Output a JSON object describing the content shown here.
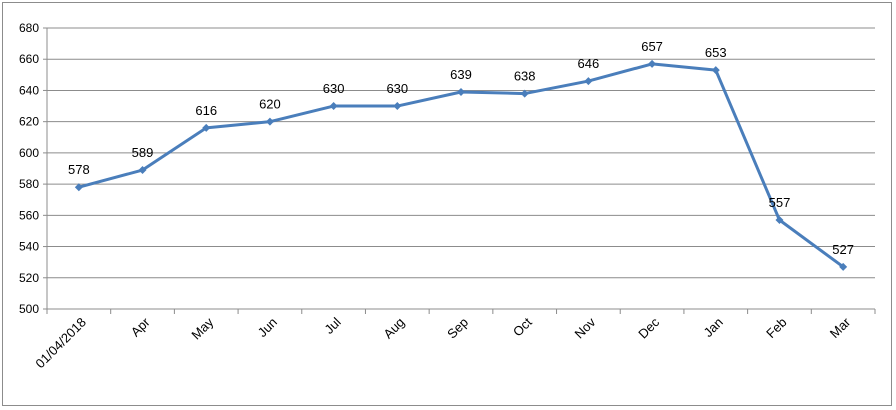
{
  "chart_data": {
    "type": "line",
    "title": "",
    "xlabel": "",
    "ylabel": "",
    "categories": [
      "01/04/2018",
      "Apr",
      "May",
      "Jun",
      "Jul",
      "Aug",
      "Sep",
      "Oct",
      "Nov",
      "Dec",
      "Jan",
      "Feb",
      "Mar"
    ],
    "series": [
      {
        "values": [
          578,
          589,
          616,
          620,
          630,
          630,
          639,
          638,
          646,
          657,
          653,
          557,
          527
        ],
        "color": "#4a7ebb"
      }
    ],
    "data_labels": [
      "578",
      "589",
      "616",
      "620",
      "630",
      "630",
      "639",
      "638",
      "646",
      "657",
      "653",
      "557",
      "527"
    ],
    "y_ticks": [
      "500",
      "520",
      "540",
      "560",
      "580",
      "600",
      "620",
      "640",
      "660",
      "680"
    ],
    "ylim": [
      500,
      680
    ],
    "grid": true,
    "legend": "none",
    "marker": "diamond"
  }
}
